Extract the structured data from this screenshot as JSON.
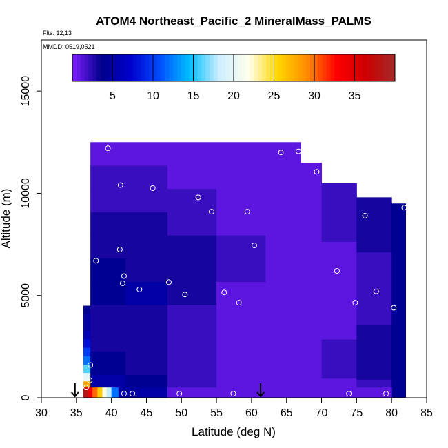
{
  "chart_data": {
    "type": "heatmap",
    "title": "ATOM4 Northeast_Pacific_2 MineralMass_PALMS",
    "subtitles": [
      "Flts: 12,13",
      "MMDD: 0519,0521"
    ],
    "xlabel": "Latitude (deg N)",
    "ylabel": "Altitude (m)",
    "xlim": [
      30,
      85
    ],
    "ylim": [
      0,
      17500
    ],
    "x_ticks": [
      30,
      35,
      40,
      45,
      50,
      55,
      60,
      65,
      70,
      75,
      80,
      85
    ],
    "y_ticks": [
      0,
      5000,
      10000,
      15000
    ],
    "x_tick_labels": [
      "30",
      "35",
      "40",
      "45",
      "50",
      "55",
      "60",
      "65",
      "70",
      "75",
      "80",
      "85"
    ],
    "y_tick_labels": [
      "0",
      "5000",
      "10000",
      "15000"
    ],
    "colorbar": {
      "range": [
        0,
        40
      ],
      "ticks": [
        5,
        10,
        15,
        20,
        25,
        30,
        35
      ],
      "tick_labels": [
        "5",
        "10",
        "15",
        "20",
        "25",
        "30",
        "35"
      ],
      "colors": [
        "#7f1fff",
        "#00008b",
        "#0000cd",
        "#0050ff",
        "#00bfff",
        "#cceeff",
        "#ffffee",
        "#ffd700",
        "#ff8c00",
        "#ff0000",
        "#cc0000",
        "#a52a2a"
      ]
    },
    "grid": false,
    "field_columns": [
      {
        "x0": 36.0,
        "x1": 37.0,
        "ytop": 4500,
        "values": [
          34,
          28,
          20,
          16,
          12,
          10,
          8,
          6,
          5,
          5,
          4
        ]
      },
      {
        "x0": 37.0,
        "x1": 42.0,
        "ytop": 12500,
        "values": [
          5,
          4,
          3,
          3,
          4,
          4,
          3,
          3,
          2,
          2,
          1
        ]
      },
      {
        "x0": 42.0,
        "x1": 48.0,
        "ytop": 12500,
        "values": [
          4,
          3,
          3,
          3,
          5,
          3,
          3,
          3,
          2,
          2,
          1
        ]
      },
      {
        "x0": 48.0,
        "x1": 55.0,
        "ytop": 12500,
        "values": [
          2,
          2,
          2,
          2,
          3,
          3,
          3,
          2,
          2,
          1,
          1
        ]
      },
      {
        "x0": 55.0,
        "x1": 62.0,
        "ytop": 12500,
        "values": [
          1,
          1,
          1,
          1,
          1,
          2,
          2,
          1,
          1,
          1,
          1
        ]
      },
      {
        "x0": 62.0,
        "x1": 67.0,
        "ytop": 12500,
        "values": [
          1,
          1,
          1,
          1,
          1,
          1,
          1,
          1,
          1,
          1,
          1
        ]
      },
      {
        "x0": 67.0,
        "x1": 70.0,
        "ytop": 11500,
        "values": [
          1,
          1,
          1,
          1,
          1,
          1,
          1,
          1,
          1,
          1,
          1
        ]
      },
      {
        "x0": 70.0,
        "x1": 75.0,
        "ytop": 10500,
        "values": [
          1,
          2,
          2,
          1,
          1,
          1,
          1,
          1,
          2,
          2,
          2
        ]
      },
      {
        "x0": 75.0,
        "x1": 80.0,
        "ytop": 9800,
        "values": [
          2,
          3,
          3,
          3,
          2,
          2,
          2,
          2,
          3,
          3,
          3
        ]
      },
      {
        "x0": 80.0,
        "x1": 82.0,
        "ytop": 9500,
        "values": [
          4,
          4,
          4,
          4,
          4,
          4,
          4,
          4,
          4,
          4,
          4
        ]
      }
    ],
    "surface_strip": {
      "y0": 0,
      "y1": 500,
      "cells": [
        {
          "x0": 36.0,
          "x1": 36.7,
          "value": 38
        },
        {
          "x0": 36.7,
          "x1": 37.3,
          "value": 34
        },
        {
          "x0": 37.3,
          "x1": 38.0,
          "value": 30
        },
        {
          "x0": 38.0,
          "x1": 38.7,
          "value": 26
        },
        {
          "x0": 38.7,
          "x1": 39.3,
          "value": 22
        },
        {
          "x0": 39.3,
          "x1": 40.0,
          "value": 18
        },
        {
          "x0": 40.0,
          "x1": 41.0,
          "value": 12
        },
        {
          "x0": 41.0,
          "x1": 48.0,
          "value": 5
        },
        {
          "x0": 48.0,
          "x1": 80.0,
          "value": 1
        }
      ]
    },
    "sample_points": [
      {
        "x": 39.5,
        "y": 12200
      },
      {
        "x": 64.2,
        "y": 12000
      },
      {
        "x": 66.7,
        "y": 12050
      },
      {
        "x": 69.3,
        "y": 11050
      },
      {
        "x": 41.3,
        "y": 10400
      },
      {
        "x": 45.9,
        "y": 10250
      },
      {
        "x": 52.4,
        "y": 9800
      },
      {
        "x": 54.3,
        "y": 9100
      },
      {
        "x": 59.4,
        "y": 9100
      },
      {
        "x": 76.2,
        "y": 8900
      },
      {
        "x": 81.8,
        "y": 9300
      },
      {
        "x": 41.2,
        "y": 7250
      },
      {
        "x": 60.4,
        "y": 7450
      },
      {
        "x": 37.8,
        "y": 6700
      },
      {
        "x": 72.2,
        "y": 6200
      },
      {
        "x": 41.8,
        "y": 5950
      },
      {
        "x": 41.6,
        "y": 5600
      },
      {
        "x": 48.2,
        "y": 5650
      },
      {
        "x": 44.0,
        "y": 5300
      },
      {
        "x": 77.8,
        "y": 5200
      },
      {
        "x": 50.5,
        "y": 5050
      },
      {
        "x": 56.1,
        "y": 5150
      },
      {
        "x": 58.2,
        "y": 4650
      },
      {
        "x": 74.8,
        "y": 4650
      },
      {
        "x": 80.3,
        "y": 4400
      },
      {
        "x": 35.5,
        "y": 4150
      },
      {
        "x": 37.0,
        "y": 1600
      },
      {
        "x": 36.9,
        "y": 850
      },
      {
        "x": 36.4,
        "y": 500
      },
      {
        "x": 41.8,
        "y": 200
      },
      {
        "x": 43.0,
        "y": 200
      },
      {
        "x": 49.7,
        "y": 200
      },
      {
        "x": 57.4,
        "y": 200
      },
      {
        "x": 73.9,
        "y": 200
      },
      {
        "x": 79.2,
        "y": 200
      }
    ],
    "markers": [
      {
        "x": 34.8,
        "type": "down-arrow"
      },
      {
        "x": 61.3,
        "type": "down-arrow"
      }
    ]
  }
}
